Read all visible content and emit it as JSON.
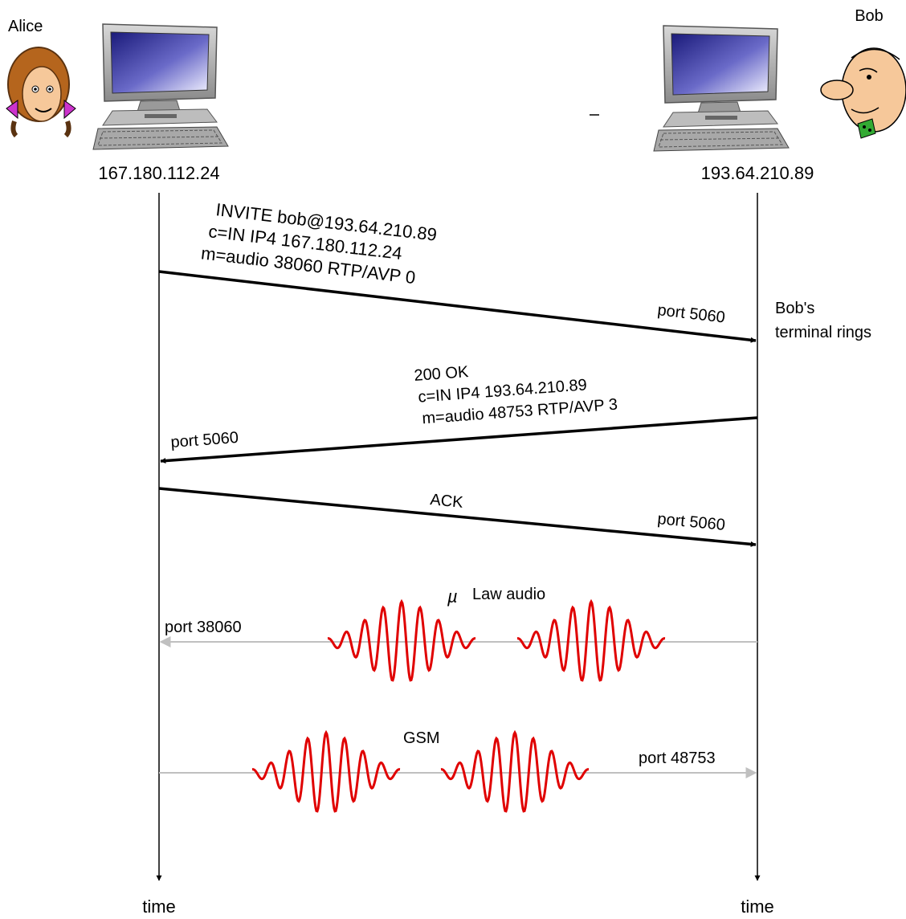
{
  "actors": {
    "alice": {
      "name": "Alice",
      "ip": "167.180.112.24",
      "time_label": "time"
    },
    "bob": {
      "name": "Bob",
      "ip": "193.64.210.89",
      "time_label": "time"
    }
  },
  "messages": {
    "invite": {
      "lines": [
        "INVITE bob@193.64.210.89",
        "c=IN IP4 167.180.112.24",
        "m=audio 38060 RTP/AVP 0"
      ],
      "port": "port 5060"
    },
    "bob_note": {
      "line1": "Bob's",
      "line2": "terminal rings"
    },
    "ok": {
      "lines": [
        "200 OK",
        "c=IN IP4 193.64.210.89",
        "m=audio 48753 RTP/AVP 3"
      ],
      "port": "port 5060"
    },
    "ack": {
      "label": "ACK",
      "port": "port 5060"
    },
    "mulaw": {
      "symbol": "µ",
      "label": "Law audio",
      "port": "port 38060"
    },
    "gsm": {
      "label": "GSM",
      "port": "port 48753"
    }
  },
  "colors": {
    "line": "#000000",
    "media": "#c0c0c0",
    "wave": "#e00000",
    "alice_hair": "#b5651d",
    "alice_bow": "#cc33cc",
    "bob_tie": "#33aa33",
    "skin": "#f6c89a"
  }
}
